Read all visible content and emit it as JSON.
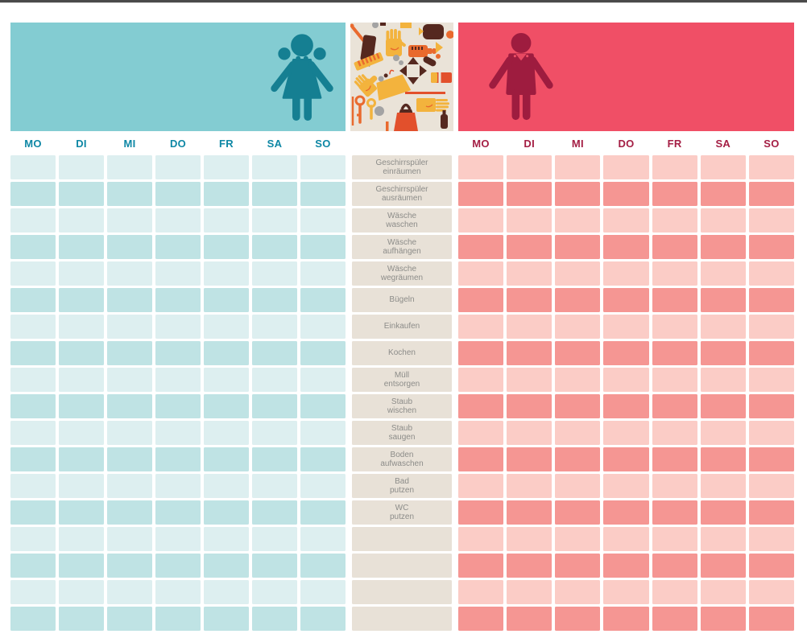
{
  "board": {
    "girl": {
      "days": [
        "MO",
        "DI",
        "MI",
        "DO",
        "FR",
        "SA",
        "SO"
      ]
    },
    "boy": {
      "days": [
        "MO",
        "DI",
        "MI",
        "DO",
        "FR",
        "SA",
        "SO"
      ]
    },
    "tasks": [
      "Geschirrspüler\neinräumen",
      "Geschirrspüler\nausräumen",
      "Wäsche\nwaschen",
      "Wäsche\naufhängen",
      "Wäsche\nwegräumen",
      "Bügeln",
      "Einkaufen",
      "Kochen",
      "Müll\nentsorgen",
      "Staub\nwischen",
      "Staub\nsaugen",
      "Boden\naufwaschen",
      "Bad\nputzen",
      "WC\nputzen",
      "",
      "",
      "",
      ""
    ]
  },
  "icons": {
    "girl": "girl-figure-icon",
    "boy": "boy-figure-icon",
    "collage": "cleaning-tools-collage"
  },
  "colors": {
    "teal_banner": "#83ccd2",
    "teal_figure": "#157f92",
    "teal_day_text": "#0e87a5",
    "teal_cell_light": "#ddeff0",
    "teal_cell_dark": "#bfe3e4",
    "red_banner": "#f04f66",
    "red_figure": "#9e1c3f",
    "red_day_text": "#a41e44",
    "red_cell_light": "#fbccc6",
    "red_cell_dark": "#f59693",
    "label_bg": "#e8e1d7",
    "label_text": "#8c8c89",
    "collage_bg": "#eae3d8",
    "topbar": "#4a4a4a"
  }
}
